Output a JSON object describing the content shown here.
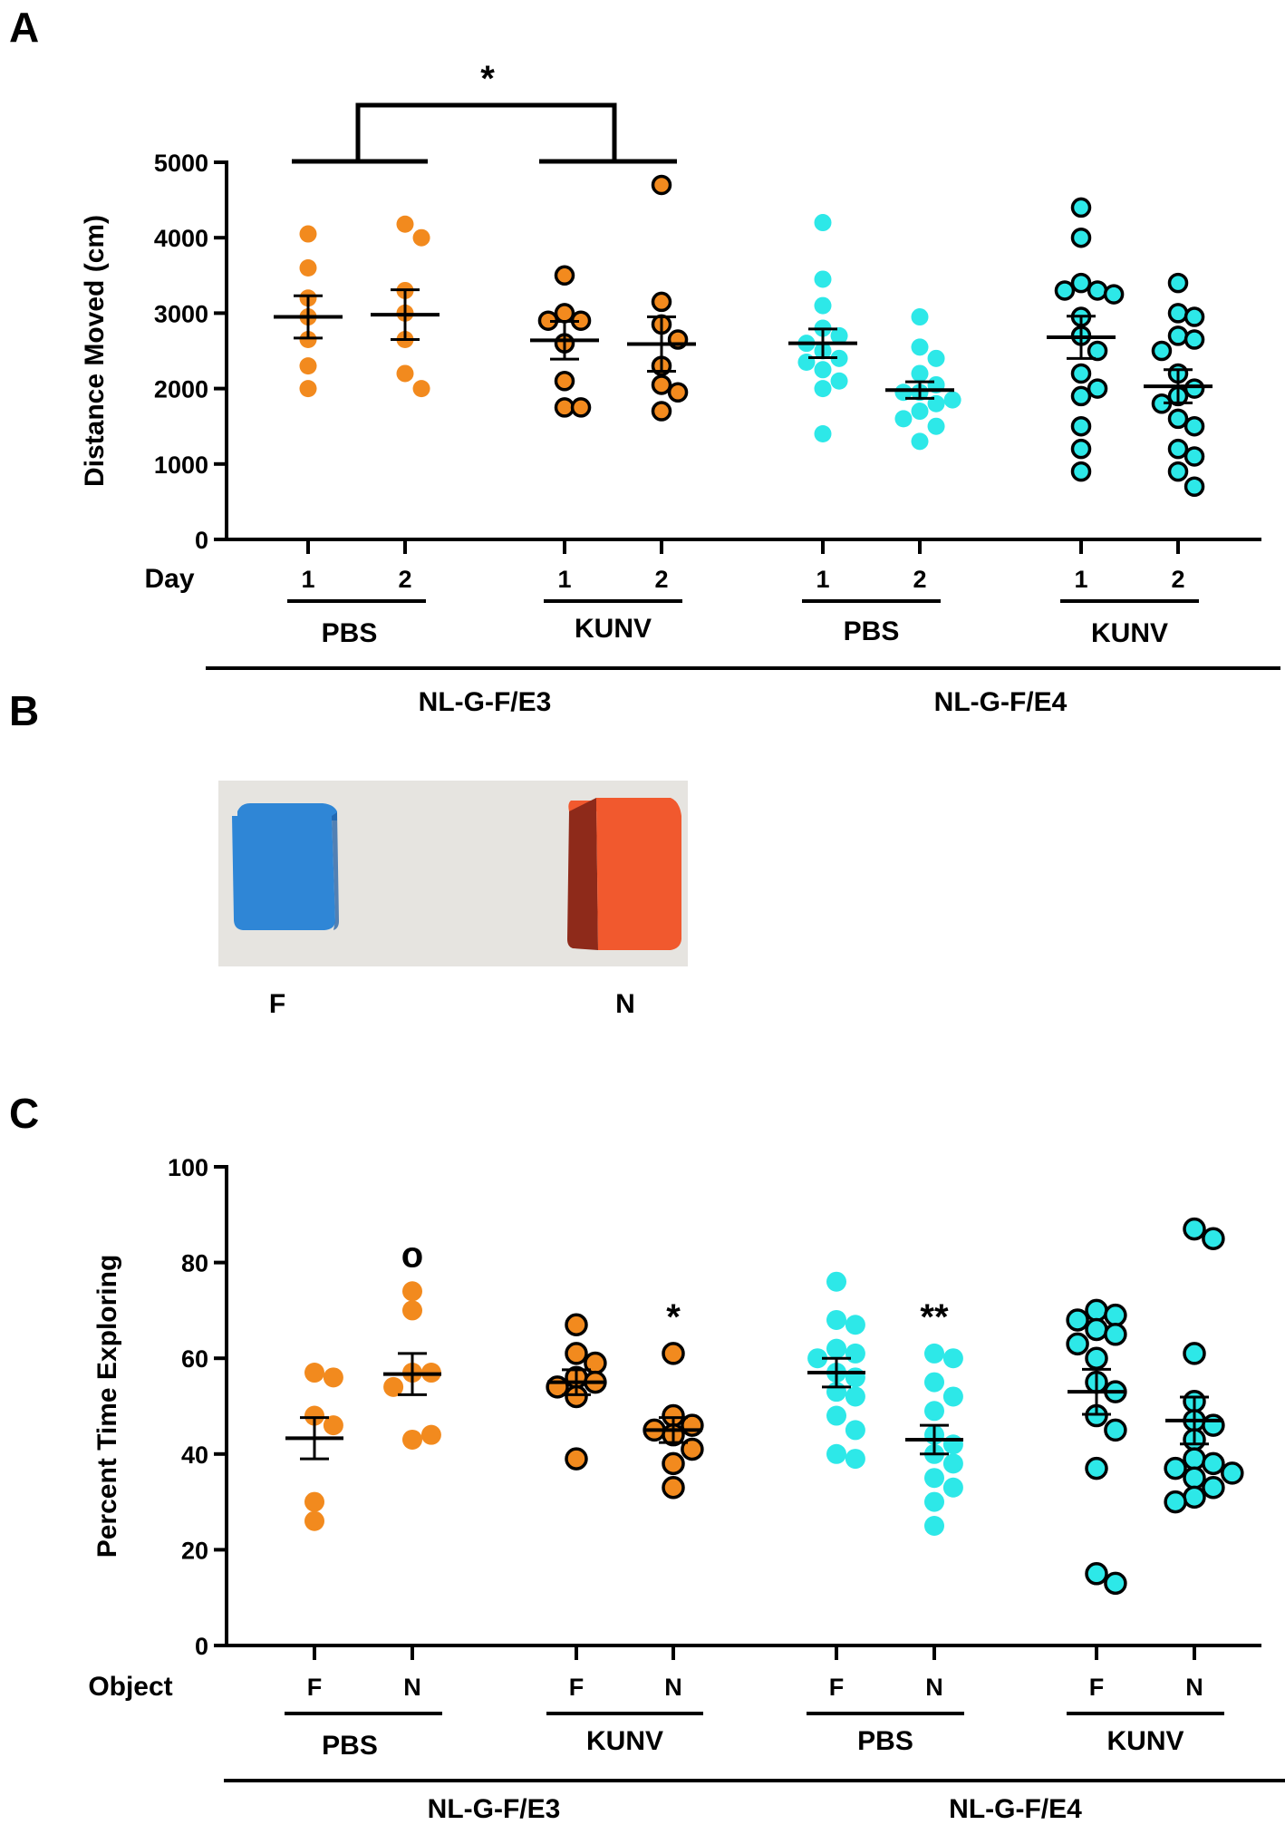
{
  "chart_data": [
    {
      "panel": "A",
      "type": "scatter",
      "ylabel": "Distance Moved (cm)",
      "ylim": [
        0,
        5000
      ],
      "yticks": [
        0,
        1000,
        2000,
        3000,
        4000,
        5000
      ],
      "xlabel": "Day",
      "groups": [
        {
          "day": "1",
          "treatment": "PBS",
          "genotype": "NL-G-F/E3",
          "color": "#f28a1e",
          "outlined": false,
          "values": [
            4050,
            3600,
            3200,
            2950,
            2650,
            2300,
            2000
          ],
          "mean": 2950,
          "sem": 280
        },
        {
          "day": "2",
          "treatment": "PBS",
          "genotype": "NL-G-F/E3",
          "color": "#f28a1e",
          "outlined": false,
          "values": [
            4180,
            4000,
            3300,
            3000,
            2650,
            2200,
            2000
          ],
          "mean": 2980,
          "sem": 330
        },
        {
          "day": "1",
          "treatment": "KUNV",
          "genotype": "NL-G-F/E3",
          "color": "#f28a1e",
          "outlined": true,
          "values": [
            3500,
            3000,
            2900,
            2900,
            2600,
            2100,
            1750,
            1750
          ],
          "mean": 2640,
          "sem": 250
        },
        {
          "day": "2",
          "treatment": "KUNV",
          "genotype": "NL-G-F/E3",
          "color": "#f28a1e",
          "outlined": true,
          "values": [
            4700,
            3150,
            2850,
            2650,
            2300,
            2050,
            1950,
            1700
          ],
          "mean": 2590,
          "sem": 360
        },
        {
          "day": "1",
          "treatment": "PBS",
          "genotype": "NL-G-F/E4",
          "color": "#2de8e8",
          "outlined": false,
          "values": [
            4200,
            3450,
            3100,
            2800,
            2700,
            2600,
            2500,
            2400,
            2350,
            2250,
            2100,
            2000,
            1400
          ],
          "mean": 2600,
          "sem": 190
        },
        {
          "day": "2",
          "treatment": "PBS",
          "genotype": "NL-G-F/E4",
          "color": "#2de8e8",
          "outlined": false,
          "values": [
            2950,
            2550,
            2400,
            2200,
            2050,
            1950,
            1950,
            1850,
            1800,
            1700,
            1600,
            1500,
            1300
          ],
          "mean": 1980,
          "sem": 110
        },
        {
          "day": "1",
          "treatment": "KUNV",
          "genotype": "NL-G-F/E4",
          "color": "#2de8e8",
          "outlined": true,
          "values": [
            4400,
            4000,
            3400,
            3300,
            3300,
            3250,
            2950,
            2700,
            2500,
            2200,
            2000,
            1900,
            1500,
            1200,
            900
          ],
          "mean": 2680,
          "sem": 280
        },
        {
          "day": "2",
          "treatment": "KUNV",
          "genotype": "NL-G-F/E4",
          "color": "#2de8e8",
          "outlined": true,
          "values": [
            3400,
            3000,
            2950,
            2700,
            2650,
            2500,
            2200,
            2000,
            1900,
            1800,
            1600,
            1500,
            1200,
            1100,
            900,
            700
          ],
          "mean": 2030,
          "sem": 220
        }
      ],
      "significance": [
        {
          "label": "*",
          "between": [
            "NL-G-F/E3 PBS",
            "NL-G-F/E3 KUNV"
          ]
        }
      ],
      "treatments": [
        "PBS",
        "KUNV",
        "PBS",
        "KUNV"
      ],
      "genotypes": [
        "NL-G-F/E3",
        "NL-G-F/E4"
      ]
    },
    {
      "panel": "C",
      "type": "scatter",
      "ylabel": "Percent Time Exploring",
      "ylim": [
        0,
        100
      ],
      "yticks": [
        0,
        20,
        40,
        60,
        80,
        100
      ],
      "xlabel": "Object",
      "groups": [
        {
          "object": "F",
          "treatment": "PBS",
          "genotype": "NL-G-F/E3",
          "color": "#f28a1e",
          "outlined": false,
          "values": [
            57,
            56,
            48,
            46,
            30,
            26
          ],
          "mean": 43.3,
          "sem": 4.3,
          "sig": ""
        },
        {
          "object": "N",
          "treatment": "PBS",
          "genotype": "NL-G-F/E3",
          "color": "#f28a1e",
          "outlined": false,
          "values": [
            74,
            70,
            57,
            57,
            54,
            43,
            44
          ],
          "mean": 56.7,
          "sem": 4.3,
          "sig": "o"
        },
        {
          "object": "F",
          "treatment": "KUNV",
          "genotype": "NL-G-F/E3",
          "color": "#f28a1e",
          "outlined": true,
          "values": [
            67,
            61,
            59,
            56,
            55,
            54,
            52,
            39
          ],
          "mean": 55,
          "sem": 2.6,
          "sig": ""
        },
        {
          "object": "N",
          "treatment": "KUNV",
          "genotype": "NL-G-F/E3",
          "color": "#f28a1e",
          "outlined": true,
          "values": [
            61,
            48,
            46,
            45,
            44,
            41,
            38,
            33
          ],
          "mean": 45,
          "sem": 2.6,
          "sig": "*"
        },
        {
          "object": "F",
          "treatment": "PBS",
          "genotype": "NL-G-F/E4",
          "color": "#2de8e8",
          "outlined": false,
          "values": [
            76,
            68,
            67,
            62,
            61,
            60,
            57,
            56,
            53,
            52,
            48,
            45,
            40,
            39
          ],
          "mean": 57,
          "sem": 3,
          "sig": ""
        },
        {
          "object": "N",
          "treatment": "PBS",
          "genotype": "NL-G-F/E4",
          "color": "#2de8e8",
          "outlined": false,
          "values": [
            61,
            60,
            55,
            52,
            49,
            44,
            42,
            40,
            38,
            35,
            33,
            30,
            25
          ],
          "mean": 43,
          "sem": 3,
          "sig": "**"
        },
        {
          "object": "F",
          "treatment": "KUNV",
          "genotype": "NL-G-F/E4",
          "color": "#2de8e8",
          "outlined": true,
          "values": [
            70,
            69,
            68,
            66,
            65,
            63,
            60,
            55,
            53,
            48,
            45,
            37,
            15,
            13
          ],
          "mean": 53,
          "sem": 4.7,
          "sig": ""
        },
        {
          "object": "N",
          "treatment": "KUNV",
          "genotype": "NL-G-F/E4",
          "color": "#2de8e8",
          "outlined": true,
          "values": [
            87,
            85,
            61,
            51,
            47,
            46,
            43,
            39,
            38,
            37,
            36,
            35,
            33,
            31,
            30
          ],
          "mean": 47,
          "sem": 4.9,
          "sig": ""
        }
      ],
      "treatments": [
        "PBS",
        "KUNV",
        "PBS",
        "KUNV"
      ],
      "genotypes": [
        "NL-G-F/E3",
        "NL-G-F/E4"
      ]
    }
  ],
  "panel_b": {
    "letter": "B",
    "object_labels": [
      "F",
      "N"
    ],
    "colors": {
      "background": "#e6e4e0",
      "blue_object": "#2f86d6",
      "red_object": "#f1592e"
    }
  },
  "panel_letters": {
    "a": "A",
    "c": "C"
  }
}
